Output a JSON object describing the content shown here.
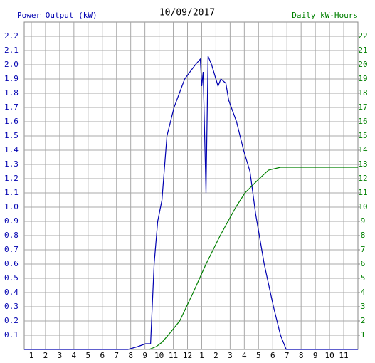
{
  "chart_data": {
    "type": "line",
    "title": "10/09/2017",
    "xlim": [
      0.5,
      24
    ],
    "xticks": [
      1,
      2,
      3,
      4,
      5,
      6,
      7,
      8,
      9,
      10,
      11,
      12,
      {
        "value": 13,
        "label": "1"
      },
      {
        "value": 14,
        "label": "2"
      },
      {
        "value": 15,
        "label": "3"
      },
      {
        "value": 16,
        "label": "4"
      },
      {
        "value": 17,
        "label": "5"
      },
      {
        "value": 18,
        "label": "6"
      },
      {
        "value": 19,
        "label": "7"
      },
      {
        "value": 20,
        "label": "8"
      },
      {
        "value": 21,
        "label": "9"
      },
      {
        "value": 22,
        "label": "10"
      },
      {
        "value": 23,
        "label": "11"
      }
    ],
    "ylim": [
      0,
      2.3
    ],
    "yticks": [
      0.1,
      0.2,
      0.3,
      0.4,
      0.5,
      0.6,
      0.7,
      0.8,
      0.9,
      {
        "value": 1,
        "label": "1.0"
      },
      1.1,
      1.2,
      1.3,
      1.4,
      1.5,
      1.6,
      1.7,
      1.8,
      1.9,
      {
        "value": 2,
        "label": "2.0"
      },
      2.1,
      2.2
    ],
    "y2lim": [
      0,
      23
    ],
    "y2ticks": [
      1,
      2,
      3,
      4,
      5,
      6,
      7,
      8,
      9,
      10,
      11,
      12,
      13,
      14,
      15,
      16,
      17,
      18,
      19,
      20,
      21,
      22
    ],
    "grid": true,
    "series": [
      {
        "name": "Power Output (kW)",
        "color": "#0000b0",
        "x": [
          0.5,
          7.8,
          8.5,
          9.05,
          9.4,
          9.65,
          9.9,
          10.2,
          10.55,
          11.05,
          11.8,
          12.55,
          12.9,
          13.0,
          13.1,
          13.3,
          13.45,
          13.7,
          14.15,
          14.35,
          14.7,
          14.9,
          15.45,
          15.95,
          16.4,
          16.8,
          17.4,
          18.05,
          18.55,
          18.95,
          24
        ],
        "values": [
          0,
          0,
          0.02,
          0.04,
          0.04,
          0.6,
          0.9,
          1.05,
          1.5,
          1.7,
          1.9,
          2.0,
          2.04,
          1.85,
          1.95,
          1.1,
          2.06,
          2.0,
          1.85,
          1.9,
          1.87,
          1.75,
          1.6,
          1.4,
          1.25,
          0.95,
          0.6,
          0.3,
          0.1,
          0,
          0
        ]
      },
      {
        "name": "Daily kW-Hours",
        "color": "#008000",
        "axis": "y2",
        "x": [
          9.3,
          9.8,
          10.2,
          10.8,
          11.45,
          12.4,
          13.3,
          14.3,
          15.4,
          16.05,
          17.05,
          17.7,
          18.55,
          24
        ],
        "values": [
          0,
          0.2,
          0.5,
          1.2,
          2,
          4,
          6,
          8,
          10,
          11,
          12,
          12.6,
          12.8,
          12.8
        ]
      }
    ]
  }
}
